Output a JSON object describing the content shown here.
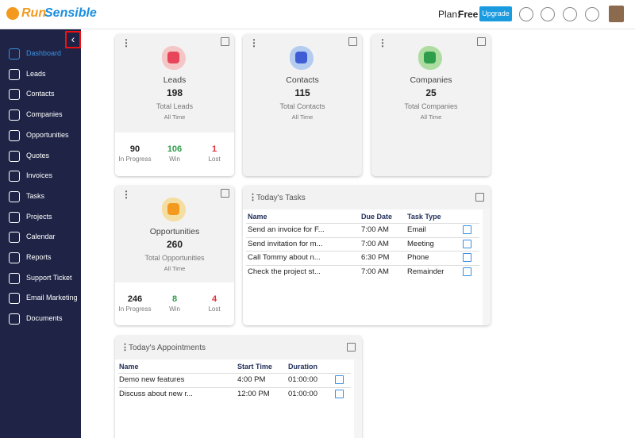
{
  "header": {
    "logo_prefix": "Run",
    "logo_suffix": "Sensible",
    "plan_label": "Plan:",
    "plan": "Free",
    "upgrade": "Upgrade"
  },
  "sidebar": {
    "active": 0,
    "items": [
      "Dashboard",
      "Leads",
      "Contacts",
      "Companies",
      "Opportunities",
      "Quotes",
      "Invoices",
      "Tasks",
      "Projects",
      "Calendar",
      "Reports",
      "Support Ticket",
      "Email Marketing",
      "Documents"
    ]
  },
  "cards": [
    {
      "title": "Leads",
      "count": 198,
      "caption": "Total Leads",
      "period": "All Time",
      "stats": [
        {
          "value": 90,
          "label": "In Progress"
        },
        {
          "value": 106,
          "label": "Win"
        },
        {
          "value": 1,
          "label": "Lost"
        }
      ]
    },
    {
      "title": "Contacts",
      "count": 115,
      "caption": "Total Contacts",
      "period": "All Time"
    },
    {
      "title": "Companies",
      "count": 25,
      "caption": "Total Companies",
      "period": "All Time"
    },
    {
      "title": "Opportunities",
      "count": 260,
      "caption": "Total Opportunities",
      "period": "All Time",
      "stats": [
        {
          "value": 246,
          "label": "In Progress"
        },
        {
          "value": 8,
          "label": "Win"
        },
        {
          "value": 4,
          "label": "Lost"
        }
      ]
    }
  ],
  "tasks": {
    "title": "Today's Tasks",
    "columns": [
      "Name",
      "Due Date",
      "Task Type"
    ],
    "rows": [
      [
        "Send an invoice for F...",
        "7:00 AM",
        "Email"
      ],
      [
        "Send invitation for m...",
        "7:00 AM",
        "Meeting"
      ],
      [
        "Call Tommy about n...",
        "6:30 PM",
        "Phone"
      ],
      [
        "Check the project st...",
        "7:00 AM",
        "Remainder"
      ]
    ]
  },
  "appointments": {
    "title": "Today's Appointments",
    "columns": [
      "Name",
      "Start Time",
      "Duration"
    ],
    "rows": [
      [
        "Demo new features",
        "4:00 PM",
        "01:00:00"
      ],
      [
        "Discuss about new r...",
        "12:00 PM",
        "01:00:00"
      ]
    ]
  }
}
